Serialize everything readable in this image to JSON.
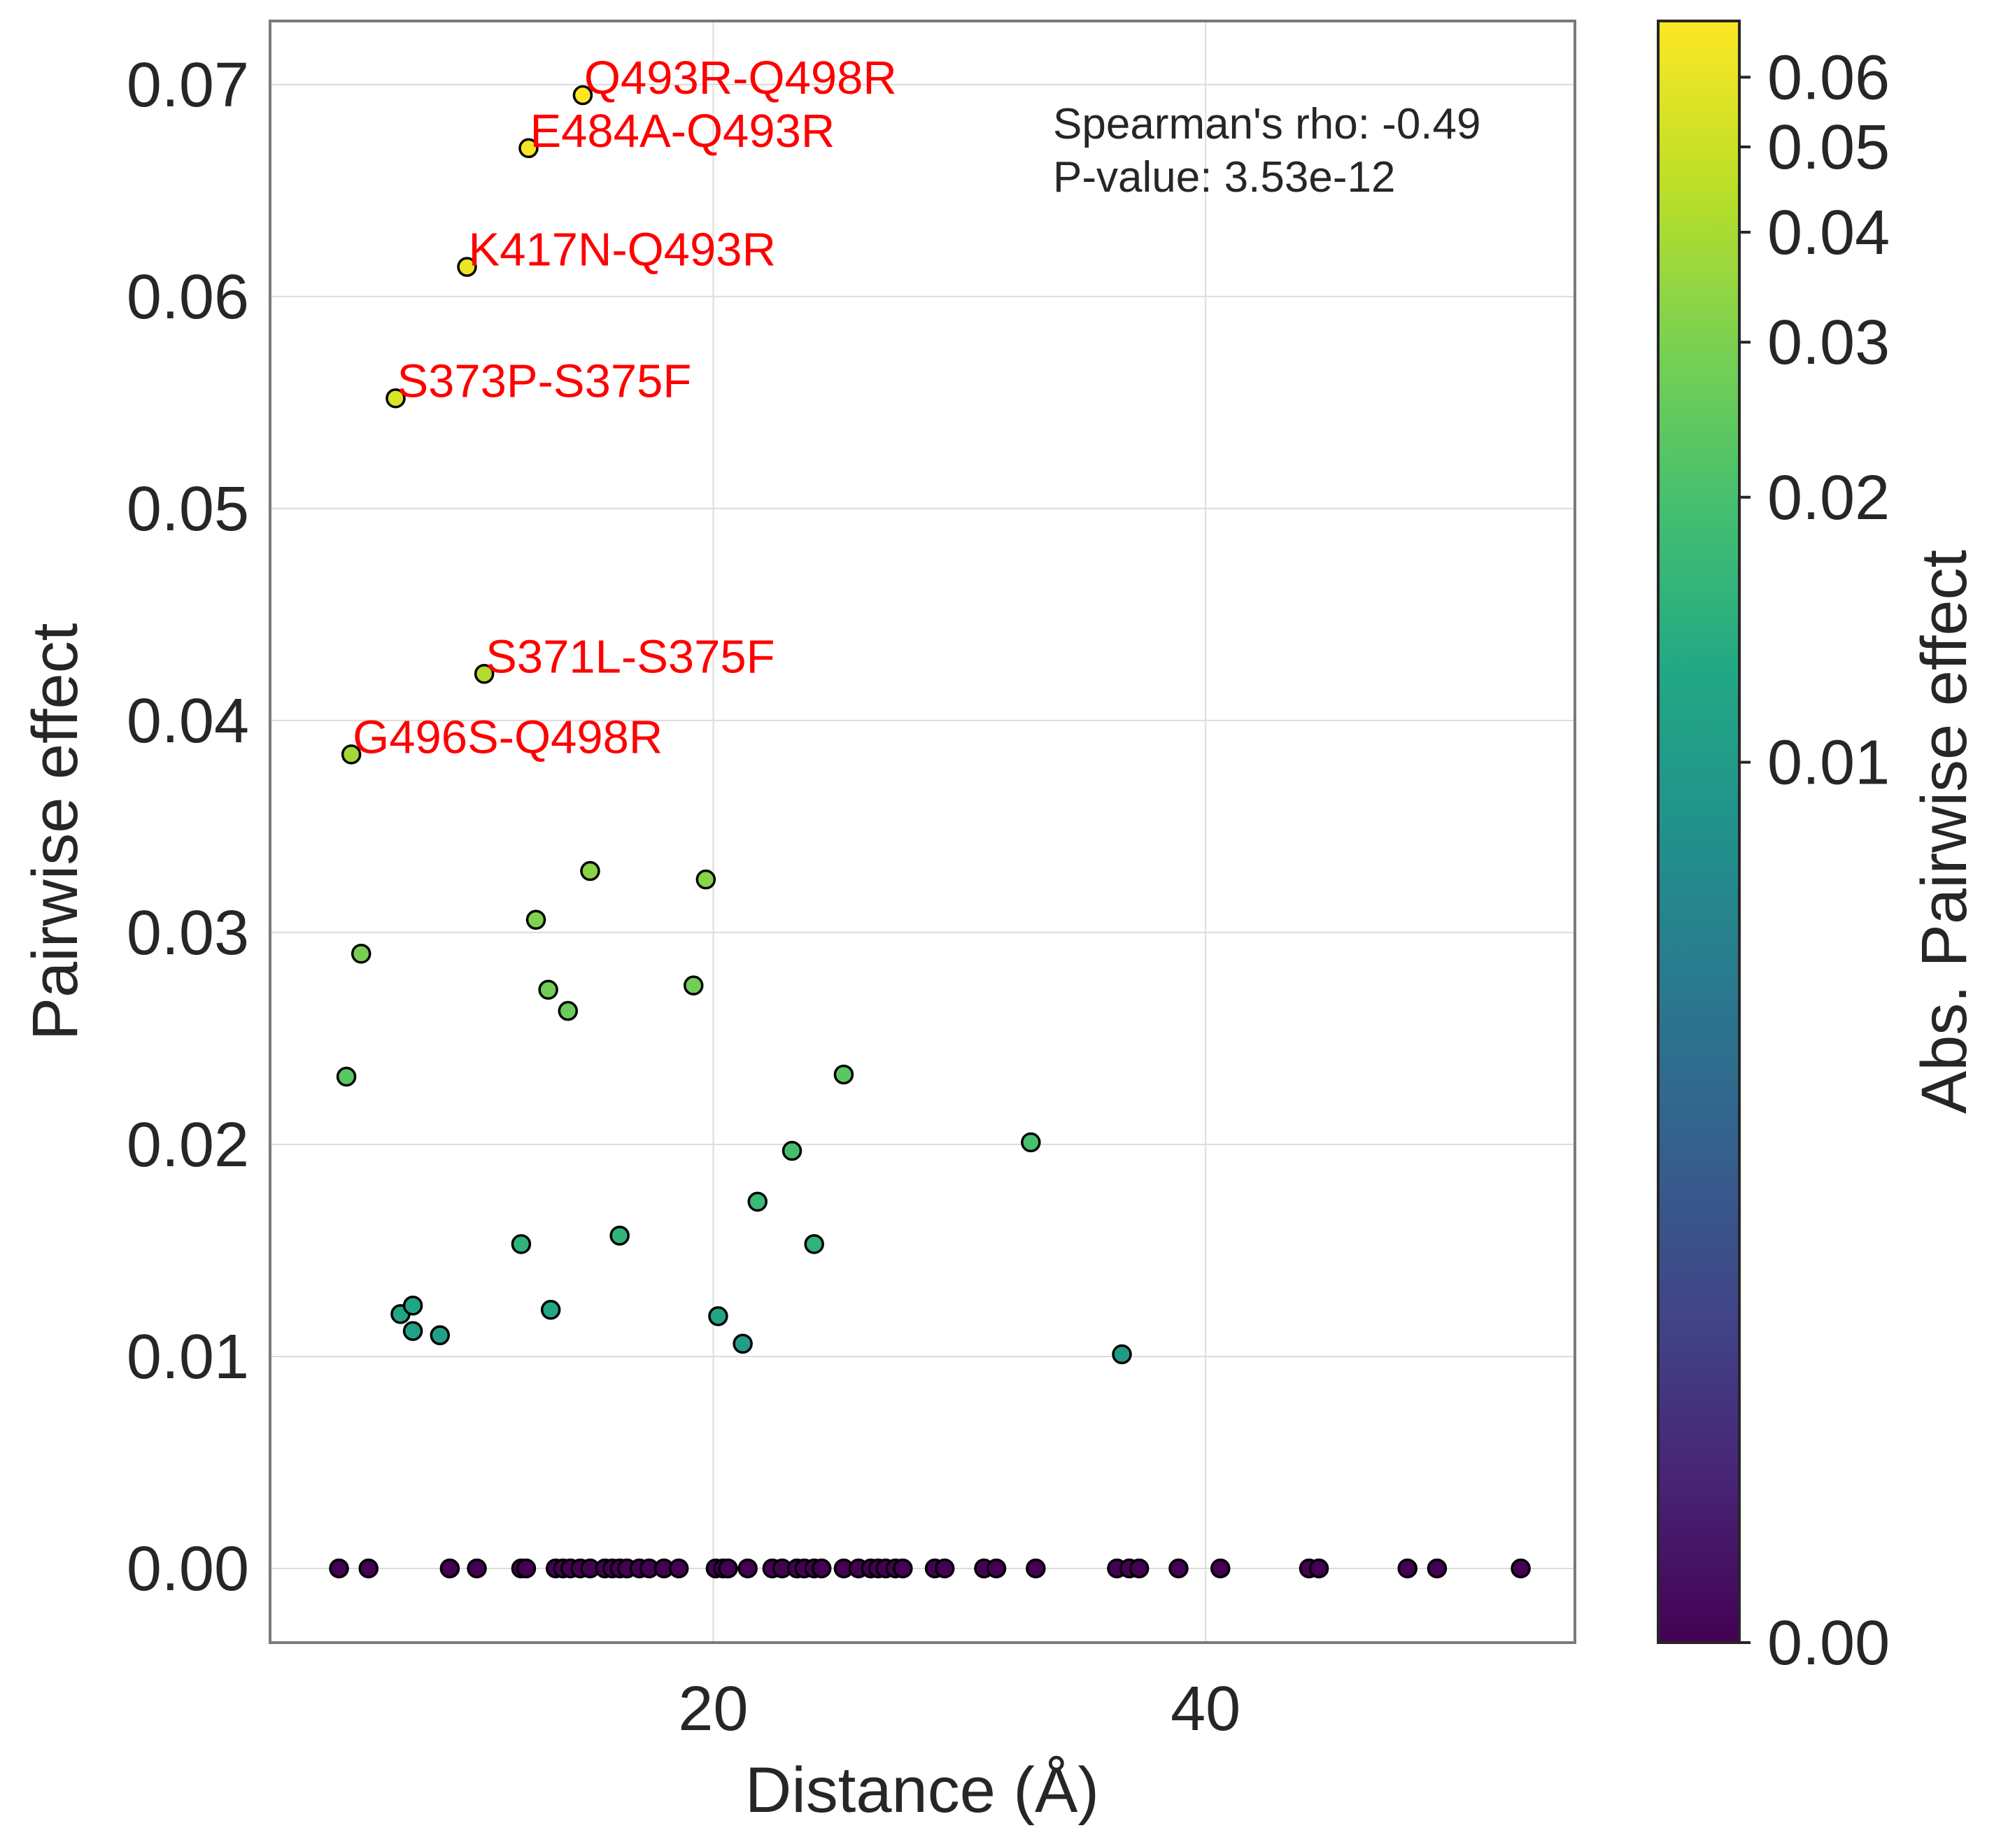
{
  "chart_data": {
    "type": "scatter",
    "xlabel": "Distance (Å)",
    "ylabel": "Pairwise effect",
    "xlim": [
      2,
      55
    ],
    "ylim": [
      -0.0035,
      0.073
    ],
    "x_ticks": [
      20,
      40
    ],
    "y_ticks": [
      0.0,
      0.01,
      0.02,
      0.03,
      0.04,
      0.05,
      0.06,
      0.07
    ],
    "x_tick_labels": [
      "20",
      "40"
    ],
    "y_tick_labels": [
      "0.00",
      "0.01",
      "0.02",
      "0.03",
      "0.04",
      "0.05",
      "0.06",
      "0.07"
    ],
    "grid": true,
    "colormap": "viridis",
    "colorbar": {
      "label": "Abs. Pairwise effect",
      "range": [
        0.0,
        0.0695
      ],
      "scale": "symlog",
      "ticks": [
        0.0,
        0.01,
        0.02,
        0.03,
        0.04,
        0.05,
        0.06
      ],
      "tick_labels": [
        "0.00",
        "0.01",
        "0.02",
        "0.03",
        "0.04",
        "0.05",
        "0.06"
      ]
    },
    "stats": {
      "line1": "Spearman's rho: -0.49",
      "line2": "P-value: 3.53e-12"
    },
    "annotation_color": "#ff0000",
    "labeled_points": [
      {
        "label": "Q493R-Q498R",
        "x": 14.7,
        "y": 0.0695
      },
      {
        "label": "E484A-Q493R",
        "x": 12.5,
        "y": 0.067
      },
      {
        "label": "K417N-Q493R",
        "x": 10.0,
        "y": 0.0614
      },
      {
        "label": "S373P-S375F",
        "x": 7.1,
        "y": 0.0552
      },
      {
        "label": "S371L-S375F",
        "x": 10.7,
        "y": 0.0422
      },
      {
        "label": "G496S-Q498R",
        "x": 5.3,
        "y": 0.0384
      }
    ],
    "points": [
      {
        "x": 14.7,
        "y": 0.0695
      },
      {
        "x": 12.5,
        "y": 0.067
      },
      {
        "x": 10.0,
        "y": 0.0614
      },
      {
        "x": 7.1,
        "y": 0.0552
      },
      {
        "x": 10.7,
        "y": 0.0422
      },
      {
        "x": 5.3,
        "y": 0.0384
      },
      {
        "x": 15.0,
        "y": 0.0329
      },
      {
        "x": 19.7,
        "y": 0.0325
      },
      {
        "x": 12.8,
        "y": 0.0306
      },
      {
        "x": 5.7,
        "y": 0.029
      },
      {
        "x": 13.3,
        "y": 0.0273
      },
      {
        "x": 19.2,
        "y": 0.0275
      },
      {
        "x": 14.1,
        "y": 0.0263
      },
      {
        "x": 5.1,
        "y": 0.0232
      },
      {
        "x": 25.3,
        "y": 0.0233
      },
      {
        "x": 32.9,
        "y": 0.0201
      },
      {
        "x": 23.2,
        "y": 0.0197
      },
      {
        "x": 21.8,
        "y": 0.0173
      },
      {
        "x": 12.2,
        "y": 0.0153
      },
      {
        "x": 16.2,
        "y": 0.0157
      },
      {
        "x": 24.1,
        "y": 0.0153
      },
      {
        "x": 7.3,
        "y": 0.012
      },
      {
        "x": 7.8,
        "y": 0.0124
      },
      {
        "x": 13.4,
        "y": 0.0122
      },
      {
        "x": 20.2,
        "y": 0.0119
      },
      {
        "x": 7.8,
        "y": 0.0112
      },
      {
        "x": 8.9,
        "y": 0.011
      },
      {
        "x": 21.2,
        "y": 0.0106
      },
      {
        "x": 36.6,
        "y": 0.0101
      },
      {
        "x": 4.8,
        "y": 0.0
      },
      {
        "x": 6.0,
        "y": 0.0
      },
      {
        "x": 9.3,
        "y": 0.0
      },
      {
        "x": 10.4,
        "y": 0.0
      },
      {
        "x": 12.2,
        "y": 0.0
      },
      {
        "x": 12.4,
        "y": 0.0
      },
      {
        "x": 13.6,
        "y": 0.0
      },
      {
        "x": 13.9,
        "y": 0.0
      },
      {
        "x": 14.2,
        "y": 0.0
      },
      {
        "x": 14.6,
        "y": 0.0
      },
      {
        "x": 15.0,
        "y": 0.0
      },
      {
        "x": 15.6,
        "y": 0.0
      },
      {
        "x": 15.9,
        "y": 0.0
      },
      {
        "x": 16.2,
        "y": 0.0
      },
      {
        "x": 16.5,
        "y": 0.0
      },
      {
        "x": 17.0,
        "y": 0.0
      },
      {
        "x": 17.4,
        "y": 0.0
      },
      {
        "x": 18.0,
        "y": 0.0
      },
      {
        "x": 18.6,
        "y": 0.0
      },
      {
        "x": 20.1,
        "y": 0.0
      },
      {
        "x": 20.4,
        "y": 0.0
      },
      {
        "x": 20.6,
        "y": 0.0
      },
      {
        "x": 21.4,
        "y": 0.0
      },
      {
        "x": 22.4,
        "y": 0.0
      },
      {
        "x": 22.8,
        "y": 0.0
      },
      {
        "x": 23.4,
        "y": 0.0
      },
      {
        "x": 23.7,
        "y": 0.0
      },
      {
        "x": 24.1,
        "y": 0.0
      },
      {
        "x": 24.4,
        "y": 0.0
      },
      {
        "x": 25.3,
        "y": 0.0
      },
      {
        "x": 25.9,
        "y": 0.0
      },
      {
        "x": 26.4,
        "y": 0.0
      },
      {
        "x": 26.7,
        "y": 0.0
      },
      {
        "x": 27.0,
        "y": 0.0
      },
      {
        "x": 27.4,
        "y": 0.0
      },
      {
        "x": 27.7,
        "y": 0.0
      },
      {
        "x": 29.0,
        "y": 0.0
      },
      {
        "x": 29.4,
        "y": 0.0
      },
      {
        "x": 31.0,
        "y": 0.0
      },
      {
        "x": 31.5,
        "y": 0.0
      },
      {
        "x": 33.1,
        "y": 0.0
      },
      {
        "x": 36.4,
        "y": 0.0
      },
      {
        "x": 36.9,
        "y": 0.0
      },
      {
        "x": 37.3,
        "y": 0.0
      },
      {
        "x": 38.9,
        "y": 0.0
      },
      {
        "x": 40.6,
        "y": 0.0
      },
      {
        "x": 44.2,
        "y": 0.0
      },
      {
        "x": 44.6,
        "y": 0.0
      },
      {
        "x": 48.2,
        "y": 0.0
      },
      {
        "x": 49.4,
        "y": 0.0
      },
      {
        "x": 52.8,
        "y": 0.0
      }
    ]
  }
}
